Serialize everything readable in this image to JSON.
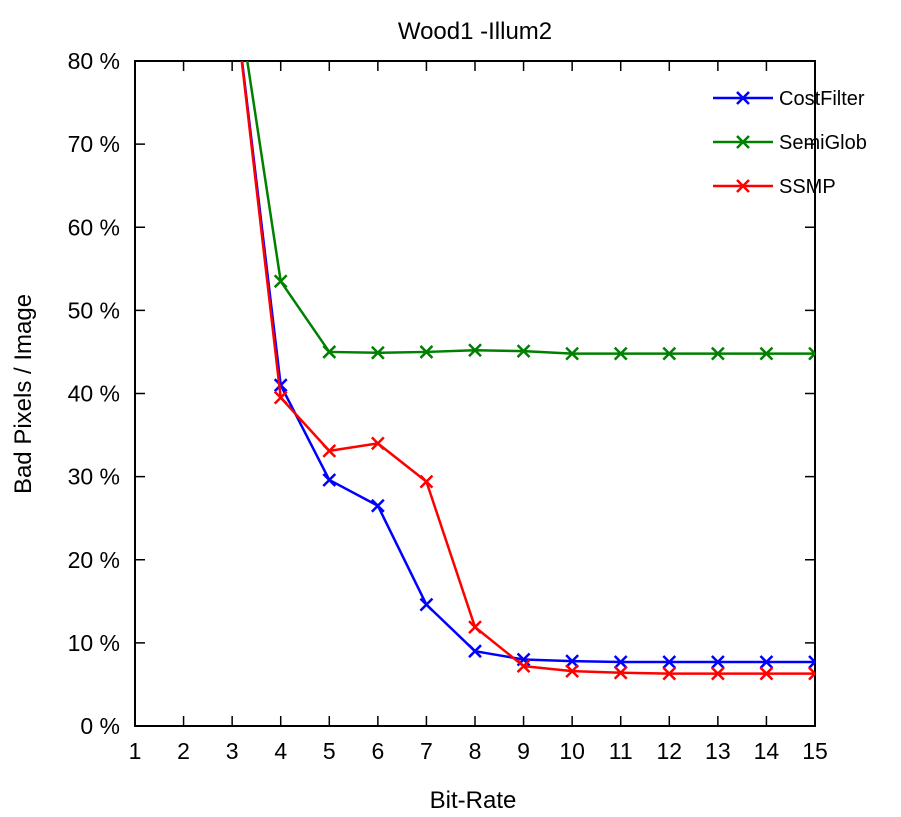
{
  "chart_data": {
    "type": "line",
    "title": "Wood1 -Illum2",
    "xlabel": "Bit-Rate",
    "ylabel": "Bad Pixels / Image",
    "xlim": [
      1,
      15
    ],
    "ylim": [
      0,
      80
    ],
    "x_ticks": [
      1,
      2,
      3,
      4,
      5,
      6,
      7,
      8,
      9,
      10,
      11,
      12,
      13,
      14,
      15
    ],
    "x_tick_labels": [
      "1",
      "2",
      "3",
      "4",
      "5",
      "6",
      "7",
      "8",
      "9",
      "10",
      "11",
      "12",
      "13",
      "14",
      "15"
    ],
    "y_ticks": [
      0,
      10,
      20,
      30,
      40,
      50,
      60,
      70,
      80
    ],
    "y_tick_labels": [
      "0 %",
      "10 %",
      "20 %",
      "30 %",
      "40 %",
      "50 %",
      "60 %",
      "70 %",
      "80 %"
    ],
    "grid": false,
    "legend_position": "top-right",
    "series": [
      {
        "name": "CostFilter",
        "color": "#0000ff",
        "x": [
          3,
          4,
          5,
          6,
          7,
          8,
          9,
          10,
          11,
          12,
          13,
          14,
          15
        ],
        "y": [
          90,
          41,
          29.6,
          26.5,
          14.6,
          9.0,
          8.0,
          7.8,
          7.7,
          7.7,
          7.7,
          7.7,
          7.7
        ]
      },
      {
        "name": "SemiGlob",
        "color": "#008000",
        "x": [
          3,
          4,
          5,
          6,
          7,
          8,
          9,
          10,
          11,
          12,
          13,
          14,
          15
        ],
        "y": [
          92,
          53.5,
          45.0,
          44.9,
          45.0,
          45.2,
          45.1,
          44.8,
          44.8,
          44.8,
          44.8,
          44.8,
          44.8
        ]
      },
      {
        "name": "SSMP",
        "color": "#ff0000",
        "x": [
          3,
          4,
          5,
          6,
          7,
          8,
          9,
          10,
          11,
          12,
          13,
          14,
          15
        ],
        "y": [
          90,
          39.5,
          33.1,
          34.0,
          29.4,
          11.9,
          7.2,
          6.6,
          6.4,
          6.3,
          6.3,
          6.3,
          6.3
        ]
      }
    ]
  }
}
